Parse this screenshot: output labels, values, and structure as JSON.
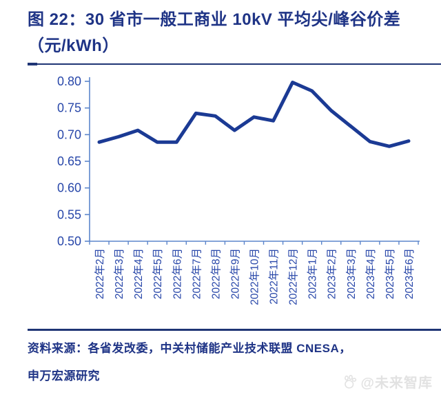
{
  "figure": {
    "title_line1": "图 22：30 省市一般工商业 10kV 平均尖/峰谷价差",
    "title_line2": "（元/kWh）"
  },
  "source": {
    "line1": "资料来源：各省发改委，中关村储能产业技术联盟 CNESA，",
    "line2": "申万宏源研究"
  },
  "watermark": {
    "text": "@未来智库"
  },
  "colors": {
    "title_text": "#1f3486",
    "source_text": "#1f3486",
    "rule": "#1f3575",
    "line": "#1b3a94",
    "axis": "#5c85cb",
    "tick_label": "#2847a9",
    "watermark": "#e2e2e2",
    "background": "#ffffff"
  },
  "chart_data": {
    "type": "line",
    "title": "30 省市一般工商业 10kV 平均尖/峰谷价差（元/kWh）",
    "xlabel": "",
    "ylabel": "",
    "x": [
      "2022年2月",
      "2022年3月",
      "2022年4月",
      "2022年5月",
      "2022年6月",
      "2022年7月",
      "2022年8月",
      "2022年9月",
      "2022年10月",
      "2022年11月",
      "2022年12月",
      "2023年1月",
      "2023年2月",
      "2023年3月",
      "2023年4月",
      "2023年5月",
      "2023年6月"
    ],
    "series": [
      {
        "name": "平均尖/峰谷价差",
        "values": [
          0.686,
          0.696,
          0.708,
          0.686,
          0.686,
          0.74,
          0.735,
          0.708,
          0.733,
          0.726,
          0.798,
          0.782,
          0.745,
          0.716,
          0.687,
          0.678,
          0.688
        ]
      }
    ],
    "ylim": [
      0.5,
      0.8
    ],
    "yticks": [
      0.5,
      0.55,
      0.6,
      0.65,
      0.7,
      0.75,
      0.8
    ],
    "grid": false,
    "legend": "none"
  }
}
